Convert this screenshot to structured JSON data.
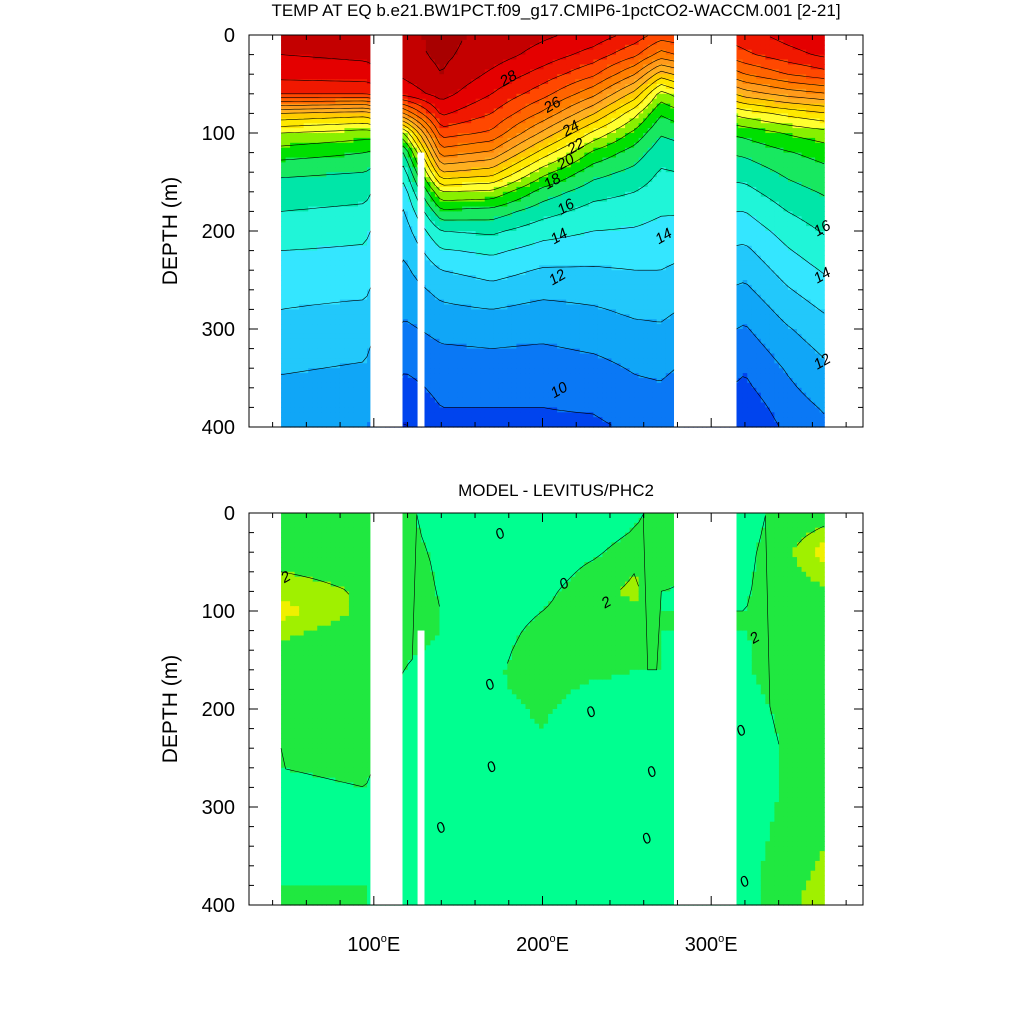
{
  "chart_data": [
    {
      "type": "heatmap",
      "title": "TEMP AT EQ b.e21.BW1PCT.f09_g17.CMIP6-1pctCO2-WACCM.001 [2-21]",
      "ylabel": "DEPTH (m)",
      "xlabel": "",
      "xlim": [
        26,
        390
      ],
      "ylim": [
        400,
        0
      ],
      "x_ticks": [
        {
          "value": 100,
          "label": "100",
          "suffix": "E"
        },
        {
          "value": 200,
          "label": "200",
          "suffix": "E"
        },
        {
          "value": 300,
          "label": "300",
          "suffix": "E"
        }
      ],
      "y_ticks": [
        {
          "value": 0,
          "label": "0"
        },
        {
          "value": 100,
          "label": "100"
        },
        {
          "value": 200,
          "label": "200"
        },
        {
          "value": 300,
          "label": "300"
        },
        {
          "value": 400,
          "label": "400"
        }
      ],
      "contour_interval": 1,
      "contour_labels": [
        {
          "text": "28",
          "x": 180,
          "y": 45
        },
        {
          "text": "26",
          "x": 206,
          "y": 72
        },
        {
          "text": "24",
          "x": 217,
          "y": 96
        },
        {
          "text": "22",
          "x": 220,
          "y": 114
        },
        {
          "text": "20",
          "x": 214,
          "y": 130
        },
        {
          "text": "18",
          "x": 206,
          "y": 150
        },
        {
          "text": "16",
          "x": 214,
          "y": 176
        },
        {
          "text": "14",
          "x": 210,
          "y": 206
        },
        {
          "text": "14",
          "x": 272,
          "y": 206
        },
        {
          "text": "16",
          "x": 366,
          "y": 198
        },
        {
          "text": "14",
          "x": 366,
          "y": 246
        },
        {
          "text": "12",
          "x": 209,
          "y": 248
        },
        {
          "text": "12",
          "x": 366,
          "y": 334
        },
        {
          "text": "10",
          "x": 210,
          "y": 363
        }
      ],
      "land_masks": [
        {
          "x": [
            98,
            117
          ],
          "depth": [
            0,
            400
          ]
        },
        {
          "x": [
            126,
            130
          ],
          "depth": [
            120,
            400
          ]
        },
        {
          "x": [
            278,
            315
          ],
          "depth": [
            0,
            400
          ]
        }
      ],
      "profiles": [
        {
          "lon": 45,
          "temp": [
            29.2,
            29,
            28.4,
            27,
            22,
            19,
            17.5,
            16.2,
            15.5,
            15,
            14.4,
            14,
            13.7,
            13.3,
            13,
            12.6,
            12.4,
            12.1,
            11.8,
            11.6,
            11.4
          ]
        },
        {
          "lon": 95,
          "temp": [
            29.4,
            29.2,
            28.6,
            27,
            21.5,
            18.5,
            17,
            16,
            15.3,
            14.8,
            14.2,
            13.9,
            13.5,
            13.2,
            12.8,
            12.5,
            12.2,
            11.9,
            11.6,
            11.4,
            11.2
          ]
        },
        {
          "lon": 118,
          "temp": [
            29.8,
            29.7,
            29.2,
            28.4,
            24,
            19,
            16,
            14.5,
            13.5,
            12.9,
            12.5,
            12.1,
            11.8,
            11.5,
            11.2,
            10.8,
            10.4,
            10.1,
            9.6,
            9.2,
            8.9
          ]
        },
        {
          "lon": 140,
          "temp": [
            30.2,
            30.2,
            30,
            29.4,
            28.2,
            26.5,
            24.5,
            22,
            19,
            16.8,
            15,
            13.9,
            13,
            12.3,
            11.8,
            11.3,
            10.9,
            10.6,
            10.3,
            10,
            9.7
          ]
        },
        {
          "lon": 170,
          "temp": [
            29.8,
            29.5,
            28.8,
            28,
            27,
            25.8,
            23.8,
            21.5,
            18.8,
            16.6,
            15.2,
            14.2,
            13.4,
            12.7,
            12,
            11.4,
            11,
            10.6,
            10.3,
            10,
            9.8
          ]
        },
        {
          "lon": 200,
          "temp": [
            29.2,
            28.6,
            27.6,
            26.4,
            24.8,
            22.8,
            20.6,
            18.4,
            16.6,
            15.4,
            14.4,
            13.6,
            12.9,
            12.3,
            11.7,
            11.3,
            10.9,
            10.6,
            10.3,
            10,
            9.8
          ]
        },
        {
          "lon": 230,
          "temp": [
            28.6,
            27.6,
            26.2,
            24.3,
            22.1,
            19.8,
            17.8,
            16.4,
            15.4,
            14.6,
            14,
            13.4,
            12.9,
            12.4,
            11.9,
            11.5,
            11.1,
            10.7,
            10.4,
            10.1,
            9.8
          ]
        },
        {
          "lon": 255,
          "temp": [
            27.6,
            26.2,
            24,
            21.6,
            19.3,
            17.7,
            16.5,
            15.7,
            15,
            14.4,
            13.9,
            13.4,
            13,
            12.6,
            12.2,
            11.8,
            11.4,
            11.1,
            10.8,
            10.5,
            10.2
          ]
        },
        {
          "lon": 270,
          "temp": [
            26.5,
            24.6,
            21.5,
            18.6,
            17.1,
            16.1,
            15.4,
            14.9,
            14.5,
            14.1,
            13.7,
            13.3,
            13,
            12.6,
            12.2,
            11.9,
            11.5,
            11.2,
            10.9,
            10.6,
            10.3
          ]
        },
        {
          "lon": 320,
          "temp": [
            27.6,
            26.8,
            25,
            22.5,
            19.5,
            17.3,
            16.2,
            15.4,
            14.7,
            14,
            13.4,
            12.8,
            12.3,
            11.8,
            11.3,
            10.9,
            10.5,
            10.1,
            9.8,
            9.4,
            9.1
          ]
        },
        {
          "lon": 345,
          "temp": [
            28.4,
            27.6,
            26,
            23.4,
            20.3,
            18.1,
            16.9,
            16.2,
            15.6,
            15,
            14.4,
            13.9,
            13.4,
            12.9,
            12.4,
            11.9,
            11.5,
            11.1,
            10.8,
            10.5,
            10.2
          ]
        },
        {
          "lon": 367,
          "temp": [
            29,
            28.2,
            26.6,
            23.9,
            20.9,
            18.6,
            17.4,
            16.7,
            16.1,
            15.6,
            15.1,
            14.6,
            14.1,
            13.6,
            13.1,
            12.6,
            12.2,
            11.8,
            11.5,
            11.1,
            10.8
          ]
        }
      ],
      "depths": [
        0,
        20,
        40,
        60,
        80,
        100,
        120,
        140,
        160,
        180,
        200,
        220,
        240,
        260,
        280,
        300,
        320,
        340,
        360,
        380,
        400
      ]
    },
    {
      "type": "heatmap",
      "title": "MODEL - LEVITUS/PHC2",
      "ylabel": "DEPTH (m)",
      "xlabel": "",
      "xlim": [
        26,
        390
      ],
      "ylim": [
        400,
        0
      ],
      "x_ticks": [
        {
          "value": 100,
          "label": "100",
          "suffix": "E"
        },
        {
          "value": 200,
          "label": "200",
          "suffix": "E"
        },
        {
          "value": 300,
          "label": "300",
          "suffix": "E"
        }
      ],
      "y_ticks": [
        {
          "value": 0,
          "label": "0"
        },
        {
          "value": 100,
          "label": "100"
        },
        {
          "value": 200,
          "label": "200"
        },
        {
          "value": 300,
          "label": "300"
        },
        {
          "value": 400,
          "label": "400"
        }
      ],
      "contour_interval": 1,
      "contour_labels": [
        {
          "text": "2",
          "x": 48,
          "y": 66
        },
        {
          "text": "0",
          "x": 175,
          "y": 22
        },
        {
          "text": "0",
          "x": 213,
          "y": 73
        },
        {
          "text": "2",
          "x": 238,
          "y": 92
        },
        {
          "text": "2",
          "x": 326,
          "y": 128
        },
        {
          "text": "0",
          "x": 169,
          "y": 176
        },
        {
          "text": "0",
          "x": 229,
          "y": 204
        },
        {
          "text": "0",
          "x": 318,
          "y": 223
        },
        {
          "text": "0",
          "x": 170,
          "y": 260
        },
        {
          "text": "0",
          "x": 265,
          "y": 265
        },
        {
          "text": "0",
          "x": 140,
          "y": 322
        },
        {
          "text": "0",
          "x": 262,
          "y": 333
        },
        {
          "text": "0",
          "x": 320,
          "y": 377
        }
      ],
      "land_masks": [
        {
          "x": [
            98,
            117
          ],
          "depth": [
            0,
            400
          ]
        },
        {
          "x": [
            126,
            130
          ],
          "depth": [
            120,
            400
          ]
        },
        {
          "x": [
            278,
            315
          ],
          "depth": [
            0,
            400
          ]
        }
      ],
      "profiles": [
        {
          "lon": 45,
          "temp": [
            1.5,
            1.6,
            1.8,
            2.0,
            2.4,
            2.9,
            2.2,
            1.8,
            1.5,
            1.3,
            1.2,
            1.1,
            1.0,
            1.0,
            0.9,
            0.9,
            0.8,
            0.8,
            0.9,
            1.0,
            1.1
          ]
        },
        {
          "lon": 95,
          "temp": [
            1.3,
            1.4,
            1.5,
            1.7,
            1.9,
            1.8,
            1.6,
            1.5,
            1.4,
            1.3,
            1.6,
            1.3,
            1.2,
            1.1,
            1.0,
            1.0,
            1.0,
            1.0,
            1.0,
            1.0,
            1.0
          ]
        },
        {
          "lon": 118,
          "temp": [
            1.2,
            1.3,
            1.5,
            1.7,
            1.6,
            1.4,
            1.2,
            1.1,
            1.0,
            0.9,
            0.8,
            0.7,
            0.6,
            0.6,
            0.5,
            0.5,
            0.5,
            0.6,
            0.6,
            0.6,
            0.6
          ]
        },
        {
          "lon": 140,
          "temp": [
            0.6,
            0.6,
            0.7,
            0.8,
            0.9,
            1.0,
            1.0,
            0.9,
            0.7,
            0.6,
            0.5,
            0.4,
            0.4,
            0.3,
            0.3,
            0.3,
            0.2,
            0.2,
            0.2,
            0.2,
            0.2
          ]
        },
        {
          "lon": 170,
          "temp": [
            0.3,
            0.3,
            0.3,
            0.4,
            0.5,
            0.6,
            0.7,
            0.8,
            0.9,
            0.9,
            0.8,
            0.7,
            0.8,
            0.9,
            0.8,
            0.6,
            0.4,
            0.3,
            0.3,
            0.3,
            0.3
          ]
        },
        {
          "lon": 200,
          "temp": [
            0.2,
            0.2,
            0.3,
            0.4,
            0.7,
            1.0,
            1.2,
            1.3,
            1.3,
            1.2,
            1.1,
            1.0,
            0.9,
            0.7,
            0.5,
            0.3,
            0.2,
            0.2,
            0.2,
            0.2,
            0.2
          ]
        },
        {
          "lon": 230,
          "temp": [
            0.3,
            0.4,
            0.8,
            1.3,
            1.7,
            1.6,
            1.5,
            1.3,
            1.1,
            0.9,
            0.7,
            0.5,
            0.4,
            0.3,
            0.3,
            0.2,
            0.2,
            0.2,
            0.2,
            0.2,
            0.2
          ]
        },
        {
          "lon": 255,
          "temp": [
            0.8,
            1.1,
            1.6,
            2.0,
            2.2,
            1.8,
            1.4,
            1.2,
            1.0,
            0.9,
            0.8,
            0.7,
            0.8,
            0.9,
            0.8,
            0.7,
            0.8,
            1.0,
            0.9,
            0.8,
            0.8
          ]
        },
        {
          "lon": 270,
          "temp": [
            1.4,
            1.3,
            1.2,
            1.1,
            1.0,
            1.0,
            1.0,
            1.0,
            1.0,
            1.0,
            1.0,
            1.0,
            1.0,
            1.0,
            1.0,
            1.0,
            1.0,
            1.0,
            1.0,
            1.0,
            1.0
          ]
        },
        {
          "lon": 320,
          "temp": [
            0.6,
            0.6,
            0.7,
            0.8,
            0.9,
            1.0,
            1.0,
            0.9,
            0.8,
            0.6,
            0.5,
            0.5,
            0.5,
            0.5,
            0.5,
            0.5,
            0.5,
            0.5,
            0.5,
            0.5,
            0.5
          ]
        },
        {
          "lon": 345,
          "temp": [
            1.4,
            1.6,
            1.8,
            1.7,
            1.6,
            1.4,
            1.3,
            1.6,
            2.0,
            1.6,
            1.3,
            1.2,
            1.1,
            1.1,
            1.1,
            1.2,
            1.3,
            1.5,
            1.7,
            1.8,
            1.9
          ]
        },
        {
          "lon": 367,
          "temp": [
            1.6,
            2.2,
            3.0,
            2.4,
            1.8,
            1.6,
            1.4,
            1.3,
            1.3,
            1.3,
            1.3,
            1.3,
            1.3,
            1.4,
            1.5,
            1.6,
            1.8,
            2.0,
            2.1,
            2.2,
            2.2
          ]
        }
      ],
      "depths": [
        0,
        20,
        40,
        60,
        80,
        100,
        120,
        140,
        160,
        180,
        200,
        220,
        240,
        260,
        280,
        300,
        320,
        340,
        360,
        380,
        400
      ]
    }
  ]
}
